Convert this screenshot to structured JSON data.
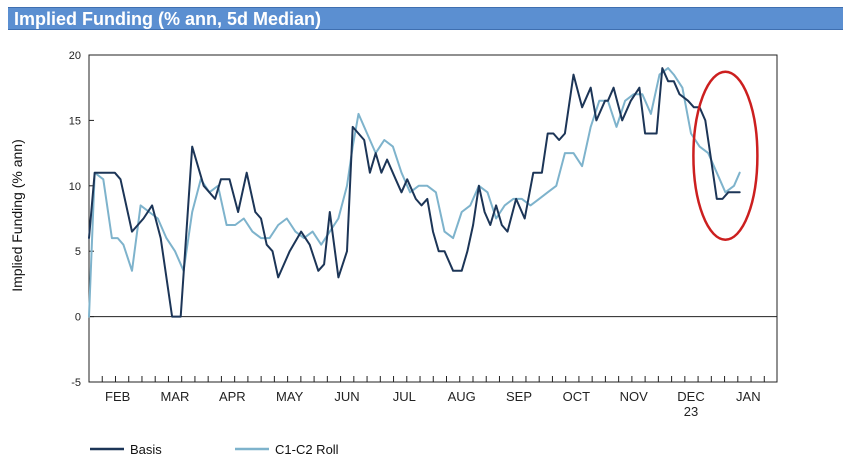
{
  "header": {
    "title": "Implied Funding (% ann, 5d Median)",
    "background": "#5b8fd1"
  },
  "chart_data": {
    "type": "line",
    "ylabel": "Implied Funding (% ann)",
    "ylim": [
      -5,
      20
    ],
    "yticks": [
      "-5",
      "0",
      "5",
      "10",
      "15",
      "20"
    ],
    "grid": false,
    "legend_position": "bottom-left",
    "month_labels": [
      "FEB",
      "MAR",
      "APR",
      "MAY",
      "JUN",
      "JUL",
      "AUG",
      "SEP",
      "OCT",
      "NOV",
      "DEC",
      "JAN"
    ],
    "year_label": "23",
    "annotation": {
      "shape": "ellipse",
      "color": "#cc1f1f",
      "note": "highlighted recent decline (Dec–Jan)"
    },
    "series": [
      {
        "name": "Basis",
        "color": "#1c3557",
        "x": [
          0.0,
          0.1,
          0.3,
          0.45,
          0.55,
          0.75,
          0.95,
          1.1,
          1.25,
          1.45,
          1.6,
          1.8,
          2.0,
          2.2,
          2.3,
          2.45,
          2.6,
          2.75,
          2.9,
          3.0,
          3.1,
          3.2,
          3.3,
          3.5,
          3.7,
          3.85,
          4.0,
          4.1,
          4.2,
          4.35,
          4.5,
          4.6,
          4.7,
          4.8,
          4.9,
          5.0,
          5.1,
          5.2,
          5.35,
          5.45,
          5.55,
          5.7,
          5.8,
          5.9,
          6.0,
          6.1,
          6.2,
          6.35,
          6.5,
          6.6,
          6.7,
          6.8,
          6.9,
          7.0,
          7.1,
          7.2,
          7.3,
          7.45,
          7.6,
          7.75,
          7.9,
          8.0,
          8.1,
          8.2,
          8.3,
          8.45,
          8.6,
          8.75,
          8.85,
          9.0,
          9.05,
          9.15,
          9.3,
          9.45,
          9.6,
          9.7,
          9.8,
          9.9,
          10.0,
          10.1,
          10.2,
          10.3,
          10.45,
          10.55,
          10.65,
          10.75,
          10.85,
          10.95,
          11.05,
          11.15,
          11.25,
          11.35
        ],
        "values": [
          6,
          11,
          11,
          11,
          10.5,
          6.5,
          7.5,
          8.5,
          6,
          0,
          0,
          13,
          10,
          9,
          10.5,
          10.5,
          8,
          11,
          8,
          7.5,
          5.5,
          5,
          3,
          5,
          6.5,
          5.5,
          3.5,
          4,
          8,
          3,
          5,
          14.5,
          14,
          13.5,
          11,
          12.5,
          11,
          12,
          10.5,
          9.5,
          10.5,
          9,
          8.5,
          9,
          6.5,
          5,
          5,
          3.5,
          3.5,
          5,
          7,
          10,
          8,
          7,
          8.5,
          7,
          6.5,
          9,
          7.5,
          11,
          11,
          14,
          14,
          13.5,
          14,
          18.5,
          16,
          17.5,
          15,
          16.5,
          16.5,
          17.5,
          15,
          16.5,
          17.5,
          14,
          14,
          14,
          19,
          18,
          18,
          17,
          16.5,
          16,
          16,
          15,
          12,
          9,
          9,
          9.5,
          9.5,
          9.5
        ]
      },
      {
        "name": "C1-C2 Roll",
        "color": "#7eb3cc",
        "x": [
          0.0,
          0.1,
          0.25,
          0.4,
          0.5,
          0.6,
          0.75,
          0.9,
          1.05,
          1.2,
          1.35,
          1.5,
          1.65,
          1.8,
          1.95,
          2.1,
          2.25,
          2.4,
          2.55,
          2.7,
          2.85,
          3.0,
          3.15,
          3.3,
          3.45,
          3.6,
          3.75,
          3.9,
          4.05,
          4.2,
          4.35,
          4.5,
          4.6,
          4.7,
          4.85,
          5.0,
          5.15,
          5.3,
          5.45,
          5.6,
          5.75,
          5.9,
          6.05,
          6.2,
          6.35,
          6.5,
          6.65,
          6.8,
          6.95,
          7.1,
          7.25,
          7.4,
          7.55,
          7.7,
          7.85,
          8.0,
          8.15,
          8.3,
          8.45,
          8.6,
          8.75,
          8.9,
          9.05,
          9.2,
          9.35,
          9.5,
          9.65,
          9.8,
          9.95,
          10.1,
          10.2,
          10.35,
          10.5,
          10.65,
          10.8,
          10.95,
          11.1,
          11.25,
          11.35
        ],
        "values": [
          0,
          11,
          10.5,
          6,
          6,
          5.5,
          3.5,
          8.5,
          8,
          7.5,
          6,
          5,
          3.5,
          8,
          10.5,
          9.5,
          10,
          7,
          7,
          7.5,
          6.5,
          6,
          6,
          7,
          7.5,
          6.5,
          6,
          6.5,
          5.5,
          6.5,
          7.5,
          10,
          13,
          15.5,
          14,
          12.5,
          13.5,
          13,
          11,
          9.5,
          10,
          10,
          9.5,
          6.5,
          6,
          8,
          8.5,
          10,
          9.5,
          7.5,
          8.5,
          9,
          9,
          8.5,
          9,
          9.5,
          10,
          12.5,
          12.5,
          11.5,
          14.5,
          16.5,
          16.5,
          14.5,
          16.5,
          17,
          17,
          15.5,
          18.5,
          19,
          18.5,
          17.5,
          14,
          13,
          12.5,
          11,
          9.5,
          10,
          11
        ]
      }
    ]
  }
}
